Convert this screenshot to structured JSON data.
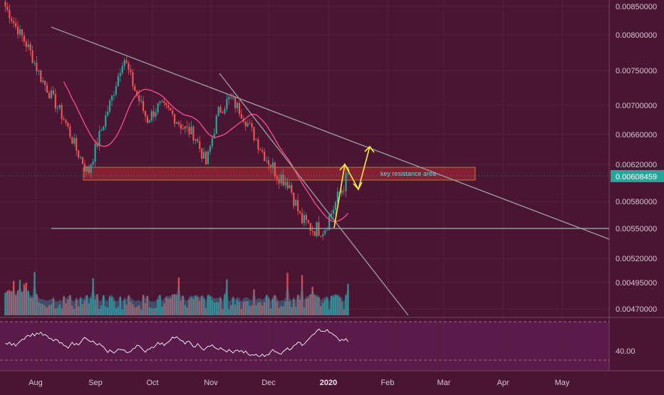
{
  "colors": {
    "background": "#4a1433",
    "rsi_panel": "#5a1a4a",
    "axis_panel": "#4a1433",
    "grid": "#5c2a45",
    "candle_up": "#26a69a",
    "candle_down": "#ef5350",
    "ma_line": "#ff4f8b",
    "trend_line": "#9a9a9a",
    "resistance_zone": "#8e2233",
    "resistance_border": "#c49a3a",
    "projection": "#ffeb3b",
    "annotation": "#6fd3e6",
    "price_label_bg": "#26a69a",
    "rsi_line": "#ffffff"
  },
  "price_axis": {
    "labels": [
      "0.00850000",
      "0.00800000",
      "0.00750000",
      "0.00700000",
      "0.00660000",
      "0.00620000",
      "0.00580000",
      "0.00550000",
      "0.00520000",
      "0.00495000",
      "0.00470000"
    ],
    "current_price": "0.00608459",
    "scale": "log"
  },
  "rsi_axis": {
    "label": "40.00"
  },
  "time_axis": {
    "labels": [
      "Aug",
      "Sep",
      "Oct",
      "Nov",
      "Dec",
      "2020",
      "Feb",
      "Mar",
      "Apr",
      "May"
    ],
    "bold_label": "2020"
  },
  "annotations": {
    "resistance_text": "key resistance area"
  },
  "chart_data": {
    "type": "candlestick",
    "series": [
      {
        "kind": "price_ohlc",
        "approx_closes": [
          0.0085,
          0.0081,
          0.0078,
          0.0074,
          0.0071,
          0.0068,
          0.0064,
          0.0061,
          0.0066,
          0.0071,
          0.0077,
          0.0072,
          0.0068,
          0.007,
          0.0069,
          0.0067,
          0.0066,
          0.0062,
          0.0069,
          0.0071,
          0.0069,
          0.0066,
          0.0063,
          0.0061,
          0.006,
          0.0056,
          0.0055,
          0.0055,
          0.0058,
          0.00608
        ]
      },
      {
        "kind": "moving_average"
      },
      {
        "kind": "volume"
      },
      {
        "kind": "rsi"
      }
    ],
    "resistance_zone": [
      0.00603,
      0.00622
    ],
    "support_level": 0.00551
  }
}
